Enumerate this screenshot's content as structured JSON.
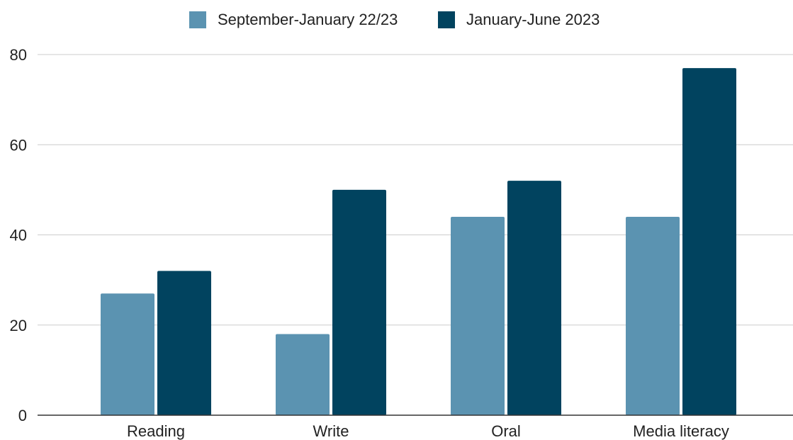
{
  "chart_data": {
    "type": "bar",
    "title": "",
    "xlabel": "",
    "ylabel": "",
    "categories": [
      "Reading",
      "Write",
      "Oral",
      "Media literacy"
    ],
    "series": [
      {
        "name": "September-January 22/23",
        "color": "#5b93b1",
        "values": [
          27,
          18,
          44,
          44
        ]
      },
      {
        "name": "January-June 2023",
        "color": "#01435f",
        "values": [
          32,
          50,
          52,
          77
        ]
      }
    ],
    "ylim": [
      0,
      80
    ],
    "yticks": [
      "0",
      "20",
      "40",
      "60",
      "80"
    ],
    "grid": true,
    "legend_position": "top"
  }
}
